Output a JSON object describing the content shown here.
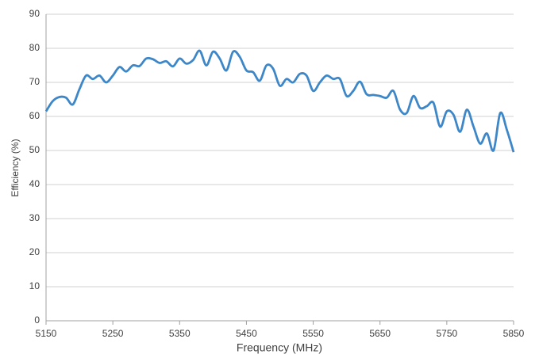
{
  "chart_data": {
    "type": "line",
    "x_label": "Frequency (MHz)",
    "y_label": "Efficiency (%)",
    "x": [
      5150,
      5160,
      5170,
      5180,
      5190,
      5200,
      5210,
      5220,
      5230,
      5240,
      5250,
      5260,
      5270,
      5280,
      5290,
      5300,
      5310,
      5320,
      5330,
      5340,
      5350,
      5360,
      5370,
      5380,
      5390,
      5400,
      5410,
      5420,
      5430,
      5440,
      5450,
      5460,
      5470,
      5480,
      5490,
      5500,
      5510,
      5520,
      5530,
      5540,
      5550,
      5560,
      5570,
      5580,
      5590,
      5600,
      5610,
      5620,
      5630,
      5640,
      5650,
      5660,
      5670,
      5680,
      5690,
      5700,
      5710,
      5720,
      5730,
      5740,
      5750,
      5760,
      5770,
      5780,
      5790,
      5800,
      5810,
      5820,
      5830,
      5840,
      5850
    ],
    "values": [
      61.5,
      64.5,
      65.7,
      65.5,
      63.5,
      68,
      72,
      71,
      72,
      70,
      72,
      74.5,
      73.2,
      75,
      74.8,
      77,
      76.8,
      75.7,
      76.2,
      74.7,
      77,
      75.5,
      76.5,
      79.3,
      75,
      79,
      77,
      73.5,
      79,
      77.5,
      73.5,
      73,
      70.5,
      75,
      74,
      69,
      71,
      70,
      72.5,
      72,
      67.5,
      70,
      72,
      71,
      71,
      66,
      67.5,
      70.2,
      66.5,
      66.3,
      66,
      65.5,
      67.5,
      62,
      61,
      66,
      62.5,
      63,
      64,
      57,
      61.5,
      60.5,
      55.5,
      62,
      57,
      52,
      55,
      50,
      61,
      56,
      49.5
    ],
    "color": "#3d87c8",
    "xlim": [
      5150,
      5850
    ],
    "xticks": [
      5150,
      5250,
      5350,
      5450,
      5550,
      5650,
      5750,
      5850
    ],
    "ylim": [
      0,
      90
    ],
    "yticks": [
      0,
      10,
      20,
      30,
      40,
      50,
      60,
      70,
      80,
      90
    ],
    "grid": true
  }
}
